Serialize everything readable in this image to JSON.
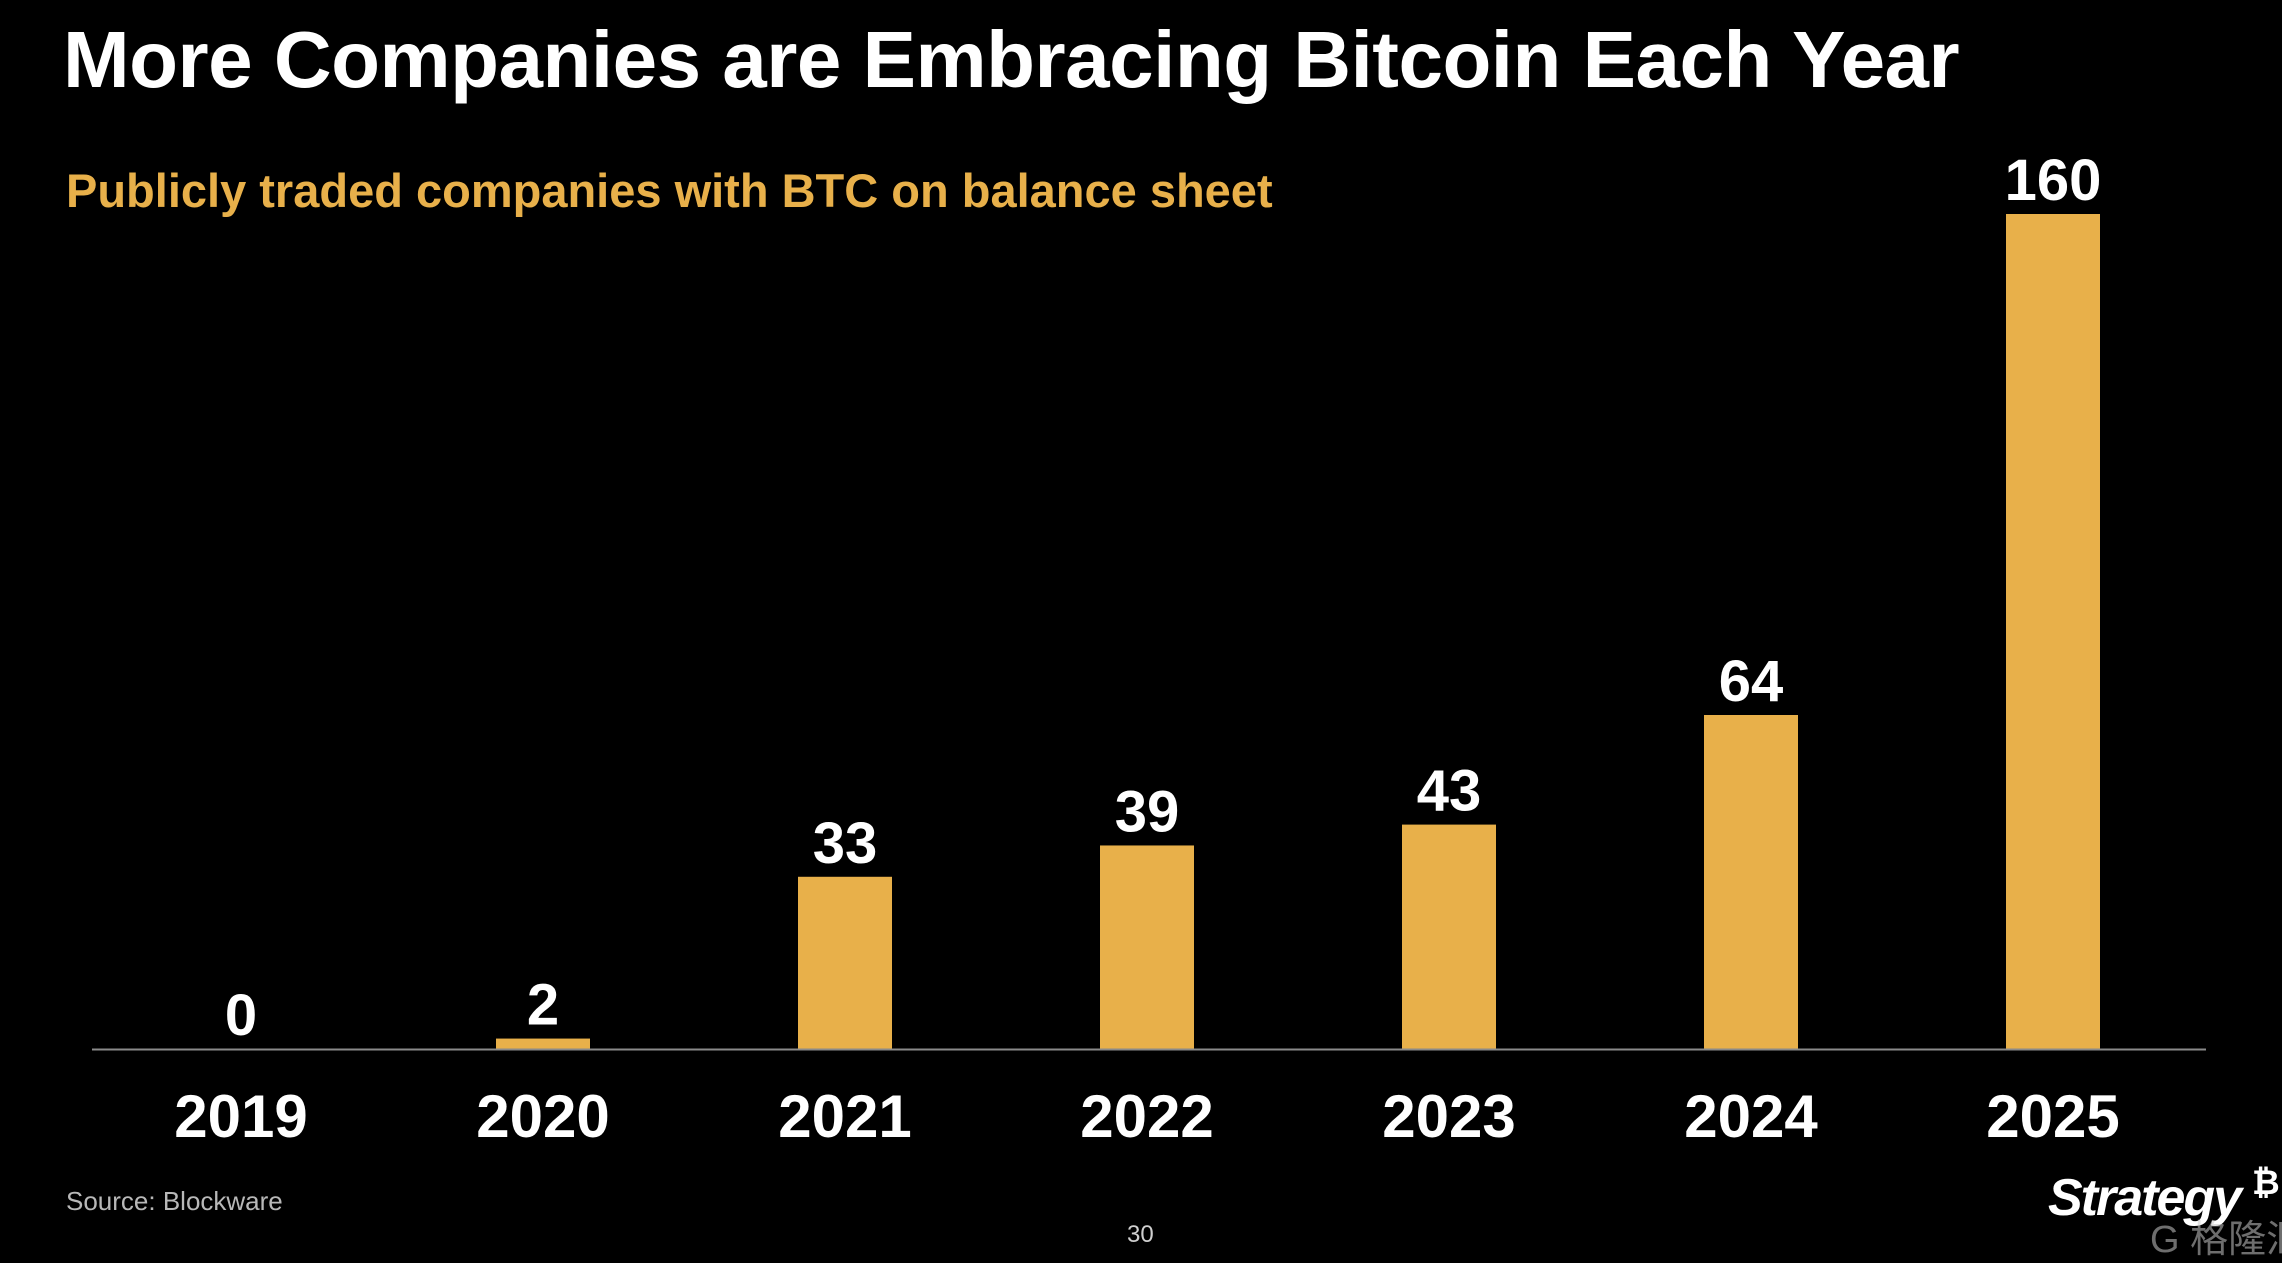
{
  "title": "More Companies are Embracing Bitcoin Each Year",
  "subtitle": "Publicly traded companies with BTC on balance sheet",
  "source": "Source: Blockware",
  "page_number": "30",
  "logo": "Strategy",
  "logo_symbol": "₿",
  "watermark": "G 格隆汇",
  "colors": {
    "accent": "#E8B04A",
    "background": "#000000",
    "text": "#FFFFFF",
    "axis": "#8A8A8A"
  },
  "chart_data": {
    "type": "bar",
    "title": "Publicly traded companies with BTC on balance sheet",
    "xlabel": "",
    "ylabel": "",
    "categories": [
      "2019",
      "2020",
      "2021",
      "2022",
      "2023",
      "2024",
      "2025"
    ],
    "values": [
      0,
      2,
      33,
      39,
      43,
      64,
      160
    ],
    "data_labels": [
      "0",
      "2",
      "33",
      "39",
      "43",
      "64",
      "160"
    ],
    "ylim": [
      0,
      160
    ],
    "grid": false,
    "legend": "none"
  }
}
